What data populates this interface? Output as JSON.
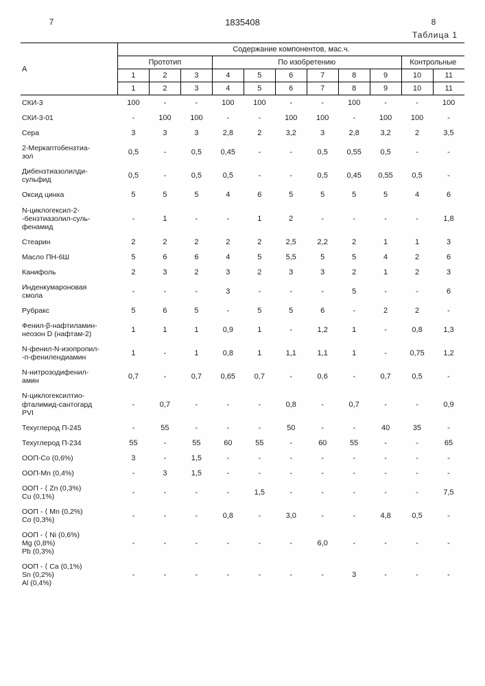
{
  "header": {
    "page_left": "7",
    "doc_number": "1835408",
    "page_right": "8",
    "table_label": "Таблица 1"
  },
  "table_header": {
    "content_title": "Содержание компонентов, мас.ч.",
    "group1": "Прототип",
    "group2": "По изобретению",
    "group3": "Контрольные",
    "col_a": "А",
    "cols": [
      "1",
      "2",
      "3",
      "4",
      "5",
      "6",
      "7",
      "8",
      "9",
      "10",
      "11"
    ],
    "cols2": [
      "1",
      "2",
      "3",
      "4",
      "5",
      "6",
      "7",
      "8",
      "9",
      "10",
      "11"
    ]
  },
  "rows": [
    {
      "label": "СКИ-3",
      "v": [
        "100",
        "-",
        "-",
        "100",
        "100",
        "-",
        "-",
        "100",
        "-",
        "-",
        "100"
      ]
    },
    {
      "label": "СКИ-3-01",
      "v": [
        "-",
        "100",
        "100",
        "-",
        "-",
        "100",
        "100",
        "-",
        "100",
        "100",
        "-"
      ]
    },
    {
      "label": "Сера",
      "v": [
        "3",
        "3",
        "3",
        "2,8",
        "2",
        "3,2",
        "3",
        "2,8",
        "3,2",
        "2",
        "3,5"
      ]
    },
    {
      "label": "2-Меркаптобензтиа-\nзол",
      "v": [
        "0,5",
        "-",
        "0,5",
        "0,45",
        "-",
        "-",
        "0,5",
        "0,55",
        "0,5",
        "-",
        "-"
      ]
    },
    {
      "label": "Дибензтиазолилди-\nсульфид",
      "v": [
        "0,5",
        "-",
        "0,5",
        "0,5",
        "-",
        "-",
        "0,5",
        "0,45",
        "0,55",
        "0,5",
        "-"
      ]
    },
    {
      "label": "Оксид цинка",
      "v": [
        "5",
        "5",
        "5",
        "4",
        "6",
        "5",
        "5",
        "5",
        "5",
        "4",
        "6"
      ]
    },
    {
      "label": "N-циклогексил-2-\n-бензтиазолил-суль-\nфенамид",
      "v": [
        "-",
        "1",
        "-",
        "-",
        "1",
        "2",
        "-",
        "-",
        "-",
        "-",
        "1,8"
      ]
    },
    {
      "label": "Стеарин",
      "v": [
        "2",
        "2",
        "2",
        "2",
        "2",
        "2,5",
        "2,2",
        "2",
        "1",
        "1",
        "3"
      ]
    },
    {
      "label": "Масло ПН-6Ш",
      "v": [
        "5",
        "6",
        "6",
        "4",
        "5",
        "5,5",
        "5",
        "5",
        "4",
        "2",
        "6"
      ]
    },
    {
      "label": "Канифоль",
      "v": [
        "2",
        "3",
        "2",
        "3",
        "2",
        "3",
        "3",
        "2",
        "1",
        "2",
        "3"
      ]
    },
    {
      "label": "Инденкумароновая\nсмола",
      "v": [
        "-",
        "-",
        "-",
        "3",
        "-",
        "-",
        "-",
        "5",
        "-",
        "-",
        "6"
      ]
    },
    {
      "label": "Рубракс",
      "v": [
        "5",
        "6",
        "5",
        "-",
        "5",
        "5",
        "6",
        "-",
        "2",
        "2",
        "-"
      ]
    },
    {
      "label": "Фенил-β-нафтиламин-\nнеозон D (нафтам-2)",
      "v": [
        "1",
        "1",
        "1",
        "0,9",
        "1",
        "-",
        "1,2",
        "1",
        "-",
        "0,8",
        "1,3"
      ]
    },
    {
      "label": "N-фенил-N-изопропил-\n-п-фенилендиамин",
      "v": [
        "1",
        "-",
        "1",
        "0,8",
        "1",
        "1,1",
        "1,1",
        "1",
        "-",
        "0,75",
        "1,2"
      ]
    },
    {
      "label": "N-нитрозодифенил-\nамин",
      "v": [
        "0,7",
        "-",
        "0,7",
        "0,65",
        "0,7",
        "-",
        "0,6",
        "-",
        "0,7",
        "0,5",
        "-"
      ]
    },
    {
      "label": "N-циклогексилтио-\nфталимид-сантогард\nPVI",
      "v": [
        "-",
        "0,7",
        "-",
        "-",
        "-",
        "0,8",
        "-",
        "0,7",
        "-",
        "-",
        "0,9"
      ]
    },
    {
      "label": "Техуглерод П-245",
      "v": [
        "-",
        "55",
        "-",
        "-",
        "-",
        "50",
        "-",
        "-",
        "40",
        "35",
        "-"
      ]
    },
    {
      "label": "Техуглерод П-234",
      "v": [
        "55",
        "-",
        "55",
        "60",
        "55",
        "-",
        "60",
        "55",
        "-",
        "-",
        "65"
      ]
    },
    {
      "label": "ООП-Co   (0,6%)",
      "v": [
        "3",
        "-",
        "1,5",
        "-",
        "-",
        "-",
        "-",
        "-",
        "-",
        "-",
        "-"
      ]
    },
    {
      "label": "ООП-Mn   (0,4%)",
      "v": [
        "-",
        "3",
        "1,5",
        "-",
        "-",
        "-",
        "-",
        "-",
        "-",
        "-",
        "-"
      ]
    },
    {
      "label": "ООП - ⟨ Zn (0,3%)\n        Cu (0,1%)",
      "v": [
        "-",
        "-",
        "-",
        "-",
        "1,5",
        "-",
        "-",
        "-",
        "-",
        "-",
        "7,5"
      ]
    },
    {
      "label": "ООП - ⟨ Mn (0,2%)\n        Co (0,3%)",
      "v": [
        "-",
        "-",
        "-",
        "0,8",
        "-",
        "3,0",
        "-",
        "-",
        "4,8",
        "0,5",
        "-"
      ]
    },
    {
      "label": "ООП - ⟨ Ni (0,6%)\n        Mg (0,8%)\n        Pb (0,3%)",
      "v": [
        "-",
        "-",
        "-",
        "-",
        "-",
        "-",
        "6,0",
        "-",
        "-",
        "-",
        "-"
      ]
    },
    {
      "label": "ООП - ⟨ Ca (0,1%)\n        Sn (0,2%)\n        Al (0,4%)",
      "v": [
        "-",
        "-",
        "-",
        "-",
        "-",
        "-",
        "-",
        "3",
        "-",
        "-",
        "-"
      ]
    }
  ]
}
